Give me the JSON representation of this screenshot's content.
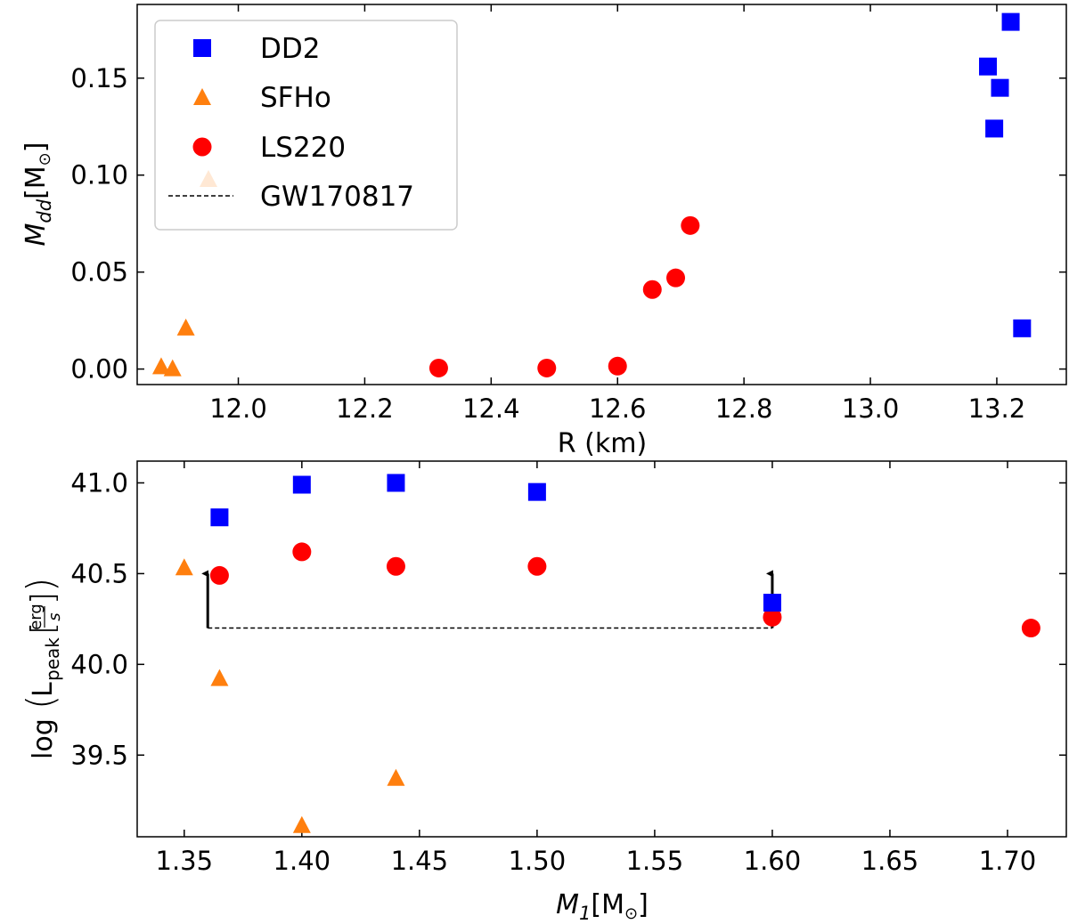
{
  "colors": {
    "DD2": "#0000ff",
    "SFHo": "#ff7f0e",
    "LS220": "#ff0000",
    "GW170817": "#000000"
  },
  "chart_data": [
    {
      "type": "scatter",
      "title": "",
      "xlabel": "R (km)",
      "ylabel_main": "M",
      "ylabel_sub": "dd",
      "ylabel_unit": "[M",
      "ylabel_sun": "⊙",
      "ylabel_close": "]",
      "xlim": [
        11.84,
        13.31
      ],
      "ylim": [
        -0.008,
        0.188
      ],
      "xticks": [
        12.0,
        12.2,
        12.4,
        12.6,
        12.8,
        13.0,
        13.2
      ],
      "xtick_labels": [
        "12.0",
        "12.2",
        "12.4",
        "12.6",
        "12.8",
        "13.0",
        "13.2"
      ],
      "yticks": [
        0.0,
        0.05,
        0.1,
        0.15
      ],
      "ytick_labels": [
        "0.00",
        "0.05",
        "0.10",
        "0.15"
      ],
      "legend_position": "top-left",
      "legend": [
        "DD2",
        "SFHo",
        "LS220",
        "GW170817"
      ],
      "series": [
        {
          "name": "DD2",
          "marker": "square",
          "x": [
            13.222,
            13.186,
            13.205,
            13.196,
            13.24
          ],
          "y": [
            0.179,
            0.156,
            0.145,
            0.124,
            0.021
          ]
        },
        {
          "name": "SFHo",
          "marker": "triangle",
          "x": [
            11.917,
            11.878,
            11.896
          ],
          "y": [
            0.021,
            0.001,
            0.0
          ]
        },
        {
          "name": "LS220",
          "marker": "circle",
          "x": [
            12.317,
            12.488,
            12.6,
            12.655,
            12.692,
            12.715
          ],
          "y": [
            0.0005,
            0.0005,
            0.0015,
            0.041,
            0.047,
            0.074
          ]
        }
      ]
    },
    {
      "type": "scatter",
      "title": "",
      "xlabel_main": "M",
      "xlabel_sub": "1",
      "xlabel_unit": "[M",
      "xlabel_sun": "⊙",
      "xlabel_close": "]",
      "ylabel_log": "log",
      "ylabel_L": "L",
      "ylabel_sub": "peak",
      "ylabel_num": "erg",
      "ylabel_den": "s",
      "xlim": [
        1.33,
        1.725
      ],
      "ylim": [
        39.05,
        41.12
      ],
      "xticks": [
        1.35,
        1.4,
        1.45,
        1.5,
        1.55,
        1.6,
        1.65,
        1.7
      ],
      "xtick_labels": [
        "1.35",
        "1.40",
        "1.45",
        "1.50",
        "1.55",
        "1.60",
        "1.65",
        "1.70"
      ],
      "yticks": [
        39.5,
        40.0,
        40.5,
        41.0
      ],
      "ytick_labels": [
        "39.5",
        "40.0",
        "40.5",
        "41.0"
      ],
      "series": [
        {
          "name": "DD2",
          "marker": "square",
          "x": [
            1.365,
            1.4,
            1.44,
            1.5,
            1.6
          ],
          "y": [
            40.81,
            40.99,
            41.0,
            40.95,
            40.34
          ]
        },
        {
          "name": "SFHo",
          "marker": "triangle",
          "x": [
            1.35,
            1.365,
            1.4,
            1.44
          ],
          "y": [
            40.53,
            39.92,
            39.11,
            39.37
          ]
        },
        {
          "name": "LS220",
          "marker": "circle",
          "x": [
            1.365,
            1.4,
            1.44,
            1.5,
            1.6,
            1.71
          ],
          "y": [
            40.49,
            40.62,
            40.54,
            40.54,
            40.26,
            40.2
          ]
        }
      ],
      "gw170817": {
        "x_range": [
          1.36,
          1.6
        ],
        "y": 40.2,
        "left_arrow_top": 40.5,
        "right_arrow_top": 40.5
      }
    }
  ]
}
